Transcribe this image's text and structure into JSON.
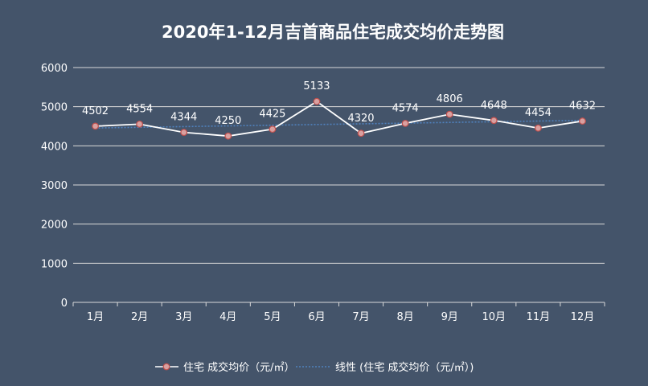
{
  "chart_data": {
    "type": "line",
    "title": "2020年1-12月吉首商品住宅成交均价走势图",
    "categories": [
      "1月",
      "2月",
      "3月",
      "4月",
      "5月",
      "6月",
      "7月",
      "8月",
      "9月",
      "10月",
      "11月",
      "12月"
    ],
    "series": [
      {
        "name": "住宅 成交均价（元/㎡）",
        "values": [
          4502,
          4554,
          4344,
          4250,
          4425,
          5133,
          4320,
          4574,
          4806,
          4648,
          4454,
          4632
        ],
        "color": "#ffffff",
        "marker_color": "#c0504d"
      },
      {
        "name": "线性 (住宅 成交均价（元/㎡）)",
        "trend": "linear",
        "color": "#4f81bd"
      }
    ],
    "y_ticks": [
      0,
      1000,
      2000,
      3000,
      4000,
      5000,
      6000
    ],
    "ylim": [
      0,
      6000
    ],
    "grid": true,
    "legend_position": "bottom"
  }
}
